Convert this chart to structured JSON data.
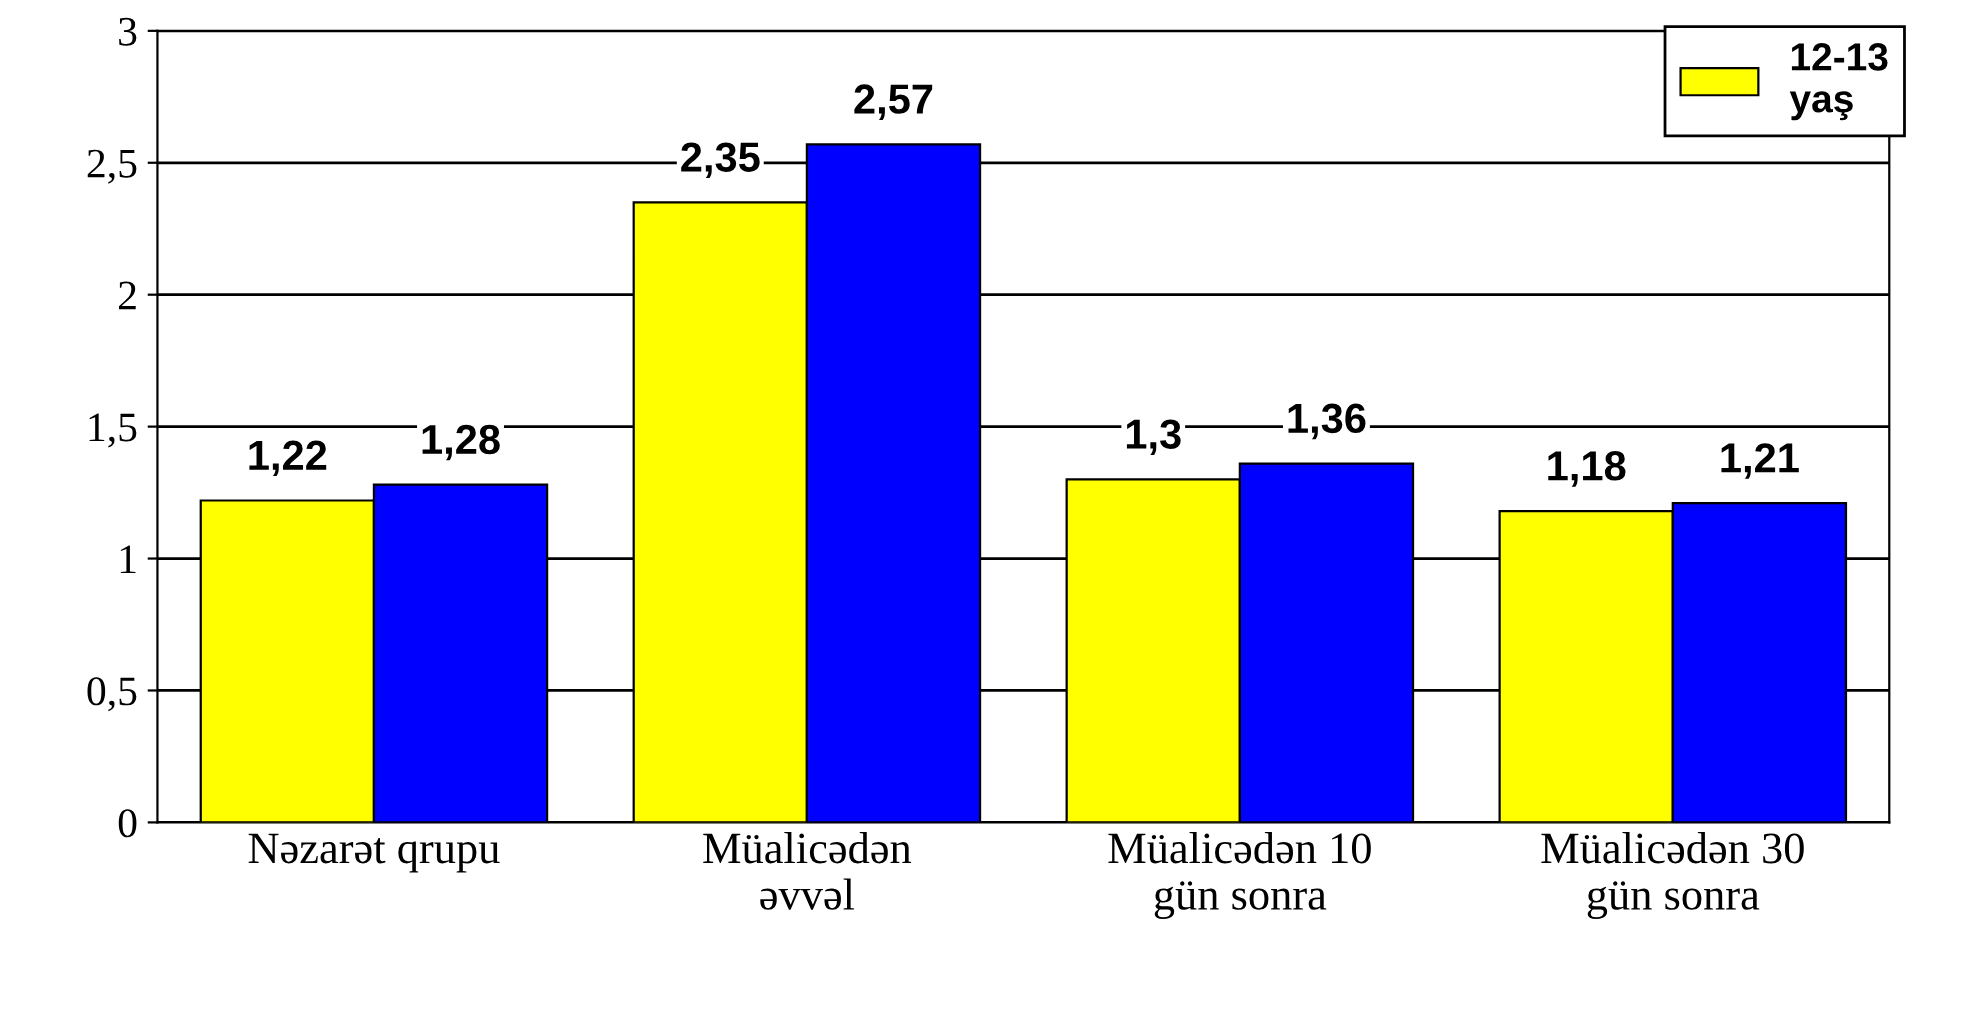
{
  "chart_data": {
    "type": "bar",
    "categories": [
      "Nəzarət qrupu",
      "Müalicədən\nəvvəl",
      "Müalicədən 10\ngün sonra",
      "Müalicədən 30\ngün sonra"
    ],
    "series": [
      {
        "name": "12-13\nyaş",
        "color": "#ffff00",
        "values": [
          1.22,
          2.35,
          1.3,
          1.18
        ],
        "value_labels": [
          "1,22",
          "2,35",
          "1,3",
          "1,18"
        ]
      },
      {
        "color": "#0000ff",
        "values": [
          1.28,
          2.57,
          1.36,
          1.21
        ],
        "value_labels": [
          "1,28",
          "2,57",
          "1,36",
          "1,21"
        ]
      }
    ],
    "ylim": [
      0,
      3
    ],
    "yticks": [
      0,
      {
        "value": 0.5,
        "label": "0,5"
      },
      1,
      {
        "value": 1.5,
        "label": "1,5"
      },
      2,
      {
        "value": 2.5,
        "label": "2,5"
      },
      3
    ],
    "grid": "y",
    "legend": "top right"
  }
}
